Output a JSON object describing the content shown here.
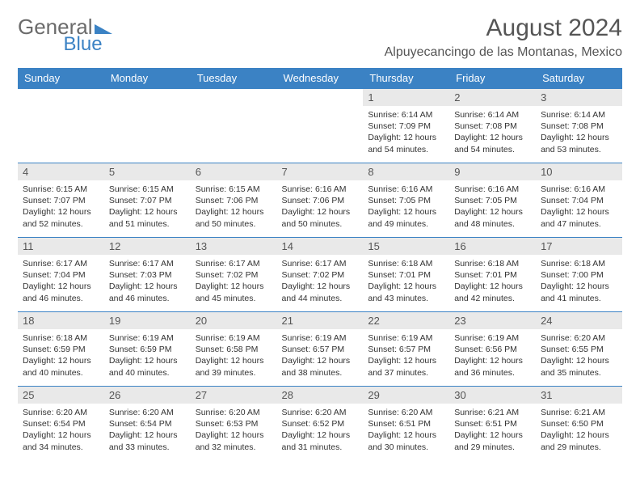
{
  "logo": {
    "text1": "General",
    "text2": "Blue"
  },
  "title": "August 2024",
  "location": "Alpuyecancingo de las Montanas, Mexico",
  "header_bg": "#3b82c4",
  "weekdays": [
    "Sunday",
    "Monday",
    "Tuesday",
    "Wednesday",
    "Thursday",
    "Friday",
    "Saturday"
  ],
  "weeks": [
    [
      null,
      null,
      null,
      null,
      {
        "n": "1",
        "sr": "6:14 AM",
        "ss": "7:09 PM",
        "dl": "12 hours and 54 minutes."
      },
      {
        "n": "2",
        "sr": "6:14 AM",
        "ss": "7:08 PM",
        "dl": "12 hours and 54 minutes."
      },
      {
        "n": "3",
        "sr": "6:14 AM",
        "ss": "7:08 PM",
        "dl": "12 hours and 53 minutes."
      }
    ],
    [
      {
        "n": "4",
        "sr": "6:15 AM",
        "ss": "7:07 PM",
        "dl": "12 hours and 52 minutes."
      },
      {
        "n": "5",
        "sr": "6:15 AM",
        "ss": "7:07 PM",
        "dl": "12 hours and 51 minutes."
      },
      {
        "n": "6",
        "sr": "6:15 AM",
        "ss": "7:06 PM",
        "dl": "12 hours and 50 minutes."
      },
      {
        "n": "7",
        "sr": "6:16 AM",
        "ss": "7:06 PM",
        "dl": "12 hours and 50 minutes."
      },
      {
        "n": "8",
        "sr": "6:16 AM",
        "ss": "7:05 PM",
        "dl": "12 hours and 49 minutes."
      },
      {
        "n": "9",
        "sr": "6:16 AM",
        "ss": "7:05 PM",
        "dl": "12 hours and 48 minutes."
      },
      {
        "n": "10",
        "sr": "6:16 AM",
        "ss": "7:04 PM",
        "dl": "12 hours and 47 minutes."
      }
    ],
    [
      {
        "n": "11",
        "sr": "6:17 AM",
        "ss": "7:04 PM",
        "dl": "12 hours and 46 minutes."
      },
      {
        "n": "12",
        "sr": "6:17 AM",
        "ss": "7:03 PM",
        "dl": "12 hours and 46 minutes."
      },
      {
        "n": "13",
        "sr": "6:17 AM",
        "ss": "7:02 PM",
        "dl": "12 hours and 45 minutes."
      },
      {
        "n": "14",
        "sr": "6:17 AM",
        "ss": "7:02 PM",
        "dl": "12 hours and 44 minutes."
      },
      {
        "n": "15",
        "sr": "6:18 AM",
        "ss": "7:01 PM",
        "dl": "12 hours and 43 minutes."
      },
      {
        "n": "16",
        "sr": "6:18 AM",
        "ss": "7:01 PM",
        "dl": "12 hours and 42 minutes."
      },
      {
        "n": "17",
        "sr": "6:18 AM",
        "ss": "7:00 PM",
        "dl": "12 hours and 41 minutes."
      }
    ],
    [
      {
        "n": "18",
        "sr": "6:18 AM",
        "ss": "6:59 PM",
        "dl": "12 hours and 40 minutes."
      },
      {
        "n": "19",
        "sr": "6:19 AM",
        "ss": "6:59 PM",
        "dl": "12 hours and 40 minutes."
      },
      {
        "n": "20",
        "sr": "6:19 AM",
        "ss": "6:58 PM",
        "dl": "12 hours and 39 minutes."
      },
      {
        "n": "21",
        "sr": "6:19 AM",
        "ss": "6:57 PM",
        "dl": "12 hours and 38 minutes."
      },
      {
        "n": "22",
        "sr": "6:19 AM",
        "ss": "6:57 PM",
        "dl": "12 hours and 37 minutes."
      },
      {
        "n": "23",
        "sr": "6:19 AM",
        "ss": "6:56 PM",
        "dl": "12 hours and 36 minutes."
      },
      {
        "n": "24",
        "sr": "6:20 AM",
        "ss": "6:55 PM",
        "dl": "12 hours and 35 minutes."
      }
    ],
    [
      {
        "n": "25",
        "sr": "6:20 AM",
        "ss": "6:54 PM",
        "dl": "12 hours and 34 minutes."
      },
      {
        "n": "26",
        "sr": "6:20 AM",
        "ss": "6:54 PM",
        "dl": "12 hours and 33 minutes."
      },
      {
        "n": "27",
        "sr": "6:20 AM",
        "ss": "6:53 PM",
        "dl": "12 hours and 32 minutes."
      },
      {
        "n": "28",
        "sr": "6:20 AM",
        "ss": "6:52 PM",
        "dl": "12 hours and 31 minutes."
      },
      {
        "n": "29",
        "sr": "6:20 AM",
        "ss": "6:51 PM",
        "dl": "12 hours and 30 minutes."
      },
      {
        "n": "30",
        "sr": "6:21 AM",
        "ss": "6:51 PM",
        "dl": "12 hours and 29 minutes."
      },
      {
        "n": "31",
        "sr": "6:21 AM",
        "ss": "6:50 PM",
        "dl": "12 hours and 29 minutes."
      }
    ]
  ]
}
